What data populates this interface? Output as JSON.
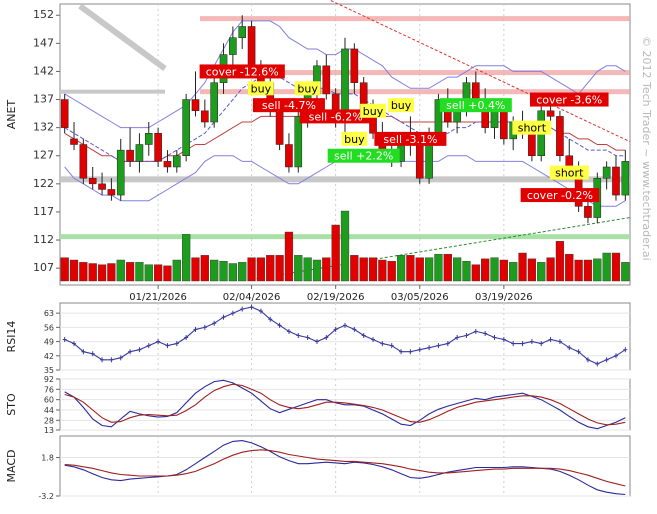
{
  "watermark": "© 2012 Tech Trader ~ www.techtrader.ai",
  "chart_data": [
    {
      "type": "candlestick",
      "ylabel": "ANET",
      "ylim": [
        104,
        154
      ],
      "yticks": [
        "152",
        "147",
        "142",
        "137",
        "132",
        "127",
        "122",
        "117",
        "112",
        "107"
      ],
      "ytick_values": [
        152,
        147,
        142,
        137,
        132,
        127,
        122,
        117,
        112,
        107
      ],
      "date_labels": [
        "01/21/2026",
        "02/04/2026",
        "02/19/2026",
        "03/05/2026",
        "03/19/2026"
      ],
      "date_label_index": [
        10,
        20,
        29,
        38,
        47
      ],
      "colors": {
        "up": "#1e9c1e",
        "down": "#e00000",
        "band": "#8080e0",
        "ma": "#c04040",
        "trend": "#e03030"
      },
      "candles": [
        [
          137,
          138,
          131,
          132
        ],
        [
          130,
          133,
          128,
          129
        ],
        [
          129,
          130,
          122,
          123
        ],
        [
          123,
          125,
          121,
          122
        ],
        [
          122,
          124,
          120,
          121
        ],
        [
          121,
          123,
          119,
          120
        ],
        [
          120,
          130,
          119,
          128
        ],
        [
          128,
          132,
          125,
          126
        ],
        [
          126,
          131,
          124,
          129
        ],
        [
          129,
          133,
          127,
          131
        ],
        [
          131,
          132,
          125,
          126
        ],
        [
          126,
          128,
          124,
          125
        ],
        [
          125,
          128,
          124,
          127
        ],
        [
          127,
          138,
          126,
          137
        ],
        [
          137,
          142,
          134,
          135
        ],
        [
          135,
          137,
          132,
          133
        ],
        [
          133,
          141,
          132,
          140
        ],
        [
          140,
          147,
          138,
          145
        ],
        [
          145,
          150,
          143,
          148
        ],
        [
          148,
          152,
          146,
          150
        ],
        [
          150,
          151,
          142,
          143
        ],
        [
          143,
          144,
          138,
          140
        ],
        [
          140,
          141,
          134,
          135
        ],
        [
          135,
          137,
          128,
          129
        ],
        [
          129,
          131,
          124,
          125
        ],
        [
          125,
          135,
          124,
          134
        ],
        [
          134,
          140,
          132,
          138
        ],
        [
          138,
          144,
          136,
          143
        ],
        [
          143,
          145,
          137,
          138
        ],
        [
          138,
          139,
          132,
          133
        ],
        [
          133,
          148,
          130,
          146
        ],
        [
          146,
          147,
          138,
          140
        ],
        [
          140,
          141,
          134,
          135
        ],
        [
          135,
          137,
          130,
          131
        ],
        [
          131,
          133,
          127,
          128
        ],
        [
          128,
          130,
          125,
          126
        ],
        [
          126,
          131,
          125,
          130
        ],
        [
          130,
          134,
          127,
          129
        ],
        [
          129,
          131,
          122,
          123
        ],
        [
          123,
          132,
          122,
          131
        ],
        [
          131,
          138,
          129,
          137
        ],
        [
          137,
          139,
          132,
          133
        ],
        [
          133,
          137,
          131,
          136
        ],
        [
          136,
          141,
          134,
          140
        ],
        [
          140,
          142,
          136,
          137
        ],
        [
          137,
          139,
          131,
          132
        ],
        [
          132,
          136,
          130,
          135
        ],
        [
          135,
          137,
          129,
          130
        ],
        [
          130,
          134,
          128,
          133
        ],
        [
          133,
          135,
          130,
          131
        ],
        [
          131,
          132,
          126,
          127
        ],
        [
          127,
          136,
          126,
          135
        ],
        [
          135,
          138,
          133,
          134
        ],
        [
          134,
          135,
          126,
          127
        ],
        [
          127,
          130,
          124,
          125
        ],
        [
          125,
          126,
          117,
          118
        ],
        [
          118,
          121,
          115,
          116
        ],
        [
          116,
          124,
          115,
          123
        ],
        [
          123,
          126,
          121,
          125
        ],
        [
          125,
          127,
          119,
          120
        ],
        [
          120,
          128,
          119,
          126
        ]
      ],
      "upper_band": [
        138,
        137,
        136,
        135,
        134,
        133,
        132,
        132,
        132,
        132,
        133,
        134,
        135,
        136,
        138,
        140,
        143,
        146,
        149,
        151,
        151,
        151,
        151,
        150,
        148,
        147,
        146,
        146,
        145,
        145,
        146,
        146,
        145,
        144,
        143,
        141,
        140,
        139,
        139,
        139,
        140,
        141,
        141,
        142,
        143,
        143,
        143,
        143,
        142,
        142,
        142,
        142,
        141,
        140,
        139,
        138,
        140,
        142,
        143,
        143,
        142
      ],
      "lower_band": [
        125,
        123,
        122,
        121,
        120,
        120,
        119,
        119,
        119,
        119,
        120,
        121,
        122,
        123,
        124,
        126,
        127,
        127,
        127,
        126,
        126,
        125,
        124,
        123,
        122,
        122,
        123,
        124,
        125,
        126,
        126,
        126,
        126,
        126,
        126,
        126,
        126,
        126,
        126,
        126,
        126,
        127,
        127,
        127,
        126,
        126,
        126,
        126,
        126,
        126,
        125,
        124,
        123,
        122,
        121,
        120,
        119,
        118,
        118,
        118,
        119
      ],
      "ma_short": [
        132,
        131,
        130,
        129,
        128,
        127,
        126,
        126,
        126,
        126,
        126,
        127,
        128,
        129,
        130,
        131,
        133,
        135,
        137,
        139,
        140,
        141,
        141,
        141,
        140,
        139,
        139,
        139,
        139,
        138,
        138,
        138,
        137,
        136,
        135,
        134,
        133,
        132,
        131,
        131,
        131,
        131,
        132,
        132,
        133,
        133,
        133,
        133,
        133,
        133,
        132,
        132,
        132,
        131,
        130,
        129,
        128,
        128,
        128,
        127,
        127
      ],
      "ma_long": [
        131,
        130,
        129,
        128,
        127,
        127,
        126,
        126,
        126,
        126,
        126,
        127,
        127,
        128,
        129,
        129,
        130,
        131,
        132,
        133,
        133,
        134,
        134,
        134,
        134,
        134,
        134,
        134,
        134,
        134,
        134,
        134,
        134,
        134,
        134,
        134,
        133,
        133,
        133,
        133,
        133,
        133,
        133,
        133,
        133,
        133,
        133,
        133,
        133,
        132,
        132,
        132,
        132,
        131,
        131,
        130,
        130,
        129,
        129,
        128,
        128
      ],
      "support_lines": [
        122.8,
        112.6
      ],
      "resistance_lines": [
        151.4,
        141.8,
        138.4
      ],
      "signals": [
        {
          "label": "cover -12.6%",
          "index": 19,
          "price": 142,
          "kind": "cover"
        },
        {
          "label": "buy",
          "index": 21,
          "price": 139,
          "kind": "buy"
        },
        {
          "label": "sell -4.7%",
          "index": 24,
          "price": 136,
          "kind": "sell"
        },
        {
          "label": "buy",
          "index": 26,
          "price": 139,
          "kind": "buy"
        },
        {
          "label": "sell -6.2%",
          "index": 29,
          "price": 134,
          "kind": "sell"
        },
        {
          "label": "buy",
          "index": 33,
          "price": 135,
          "kind": "buy"
        },
        {
          "label": "buy",
          "index": 36,
          "price": 136,
          "kind": "buy"
        },
        {
          "label": "buy",
          "index": 31,
          "price": 130,
          "kind": "buy"
        },
        {
          "label": "sell +2.2%",
          "index": 32,
          "price": 127,
          "kind": "sell-up"
        },
        {
          "label": "sell -3.1%",
          "index": 37,
          "price": 130,
          "kind": "sell"
        },
        {
          "label": "sell +0.4%",
          "index": 44,
          "price": 136,
          "kind": "sell-up"
        },
        {
          "label": "short",
          "index": 50,
          "price": 132,
          "kind": "short"
        },
        {
          "label": "cover -3.6%",
          "index": 54,
          "price": 137,
          "kind": "cover"
        },
        {
          "label": "short",
          "index": 54,
          "price": 124,
          "kind": "short"
        },
        {
          "label": "cover -0.2%",
          "index": 53,
          "price": 120,
          "kind": "cover"
        }
      ],
      "volume": [
        20,
        18,
        16,
        15,
        14,
        15,
        18,
        16,
        16,
        14,
        14,
        13,
        18,
        40,
        20,
        22,
        18,
        17,
        15,
        16,
        20,
        20,
        22,
        22,
        42,
        22,
        20,
        18,
        20,
        48,
        60,
        22,
        20,
        20,
        18,
        17,
        22,
        22,
        20,
        20,
        23,
        23,
        20,
        17,
        14,
        19,
        20,
        18,
        16,
        24,
        19,
        16,
        20,
        34,
        23,
        18,
        18,
        19,
        24,
        24,
        16
      ]
    },
    {
      "type": "line",
      "ylabel": "RSI14",
      "ylim": [
        35,
        68
      ],
      "yticks": [
        "63",
        "56",
        "49",
        "42",
        "35"
      ],
      "ytick_values": [
        63,
        56,
        49,
        42,
        35
      ],
      "series": [
        {
          "values": [
            50,
            48,
            44,
            43,
            40,
            40,
            41,
            44,
            45,
            47,
            49,
            47,
            48,
            51,
            55,
            56,
            58,
            61,
            63,
            65,
            66,
            64,
            60,
            57,
            54,
            52,
            51,
            49,
            51,
            55,
            57,
            55,
            52,
            50,
            48,
            47,
            44,
            44,
            45,
            46,
            47,
            48,
            51,
            52,
            54,
            53,
            51,
            50,
            48,
            48,
            49,
            48,
            50,
            49,
            46,
            44,
            40,
            38,
            40,
            42,
            45
          ]
        }
      ]
    },
    {
      "type": "line",
      "ylabel": "STO",
      "ylim": [
        13,
        92
      ],
      "yticks": [
        "92",
        "76",
        "60",
        "44",
        "28",
        "13"
      ],
      "ytick_values": [
        92,
        76,
        60,
        44,
        28,
        13
      ],
      "series": [
        {
          "color": "#2a2a9a",
          "values": [
            72,
            64,
            48,
            30,
            20,
            18,
            30,
            42,
            38,
            35,
            33,
            34,
            40,
            55,
            70,
            80,
            88,
            90,
            86,
            78,
            70,
            58,
            46,
            40,
            45,
            50,
            55,
            60,
            60,
            55,
            52,
            52,
            50,
            44,
            38,
            30,
            22,
            20,
            28,
            38,
            45,
            50,
            54,
            58,
            62,
            60,
            64,
            66,
            68,
            70,
            65,
            60,
            52,
            44,
            34,
            25,
            18,
            15,
            20,
            25,
            32
          ]
        },
        {
          "color": "#a02020",
          "values": [
            68,
            64,
            56,
            44,
            32,
            25,
            26,
            32,
            36,
            37,
            36,
            35,
            36,
            43,
            52,
            64,
            74,
            80,
            84,
            82,
            76,
            70,
            60,
            52,
            48,
            46,
            48,
            52,
            56,
            56,
            55,
            53,
            51,
            48,
            44,
            38,
            32,
            26,
            25,
            29,
            35,
            42,
            48,
            52,
            56,
            58,
            60,
            62,
            64,
            66,
            66,
            64,
            60,
            54,
            46,
            38,
            30,
            24,
            21,
            22,
            25
          ]
        }
      ]
    },
    {
      "type": "line",
      "ylabel": "MACD",
      "ylim": [
        -3.2,
        4.6
      ],
      "yticks": [
        "1.8",
        "-3.2"
      ],
      "ytick_values": [
        1.8,
        -3.2
      ],
      "series": [
        {
          "color": "#2a2a9a",
          "values": [
            0.8,
            0.6,
            0.2,
            -0.3,
            -0.8,
            -1.1,
            -1.2,
            -1.0,
            -0.9,
            -0.8,
            -0.7,
            -0.6,
            -0.4,
            0.2,
            1.0,
            1.8,
            2.6,
            3.4,
            3.9,
            4.0,
            3.7,
            3.2,
            2.6,
            1.9,
            1.4,
            1.0,
            1.0,
            1.1,
            1.2,
            1.1,
            1.0,
            1.2,
            1.1,
            0.9,
            0.6,
            0.2,
            -0.3,
            -0.8,
            -0.9,
            -0.7,
            -0.4,
            -0.1,
            0.1,
            0.3,
            0.5,
            0.5,
            0.5,
            0.5,
            0.6,
            0.6,
            0.5,
            0.4,
            0.3,
            0.0,
            -0.5,
            -1.1,
            -1.8,
            -2.4,
            -2.7,
            -2.9,
            -3.0
          ]
        },
        {
          "color": "#a02020",
          "values": [
            0.9,
            0.8,
            0.6,
            0.4,
            0.1,
            -0.2,
            -0.4,
            -0.5,
            -0.6,
            -0.6,
            -0.6,
            -0.6,
            -0.5,
            -0.3,
            0.0,
            0.5,
            1.0,
            1.6,
            2.1,
            2.5,
            2.7,
            2.8,
            2.7,
            2.5,
            2.2,
            2.0,
            1.8,
            1.6,
            1.5,
            1.4,
            1.3,
            1.3,
            1.2,
            1.1,
            1.0,
            0.8,
            0.6,
            0.3,
            0.1,
            -0.1,
            -0.2,
            -0.2,
            -0.1,
            0.0,
            0.1,
            0.2,
            0.3,
            0.3,
            0.4,
            0.4,
            0.4,
            0.4,
            0.4,
            0.3,
            0.1,
            -0.2,
            -0.5,
            -0.9,
            -1.3,
            -1.6,
            -1.9
          ]
        }
      ]
    }
  ]
}
